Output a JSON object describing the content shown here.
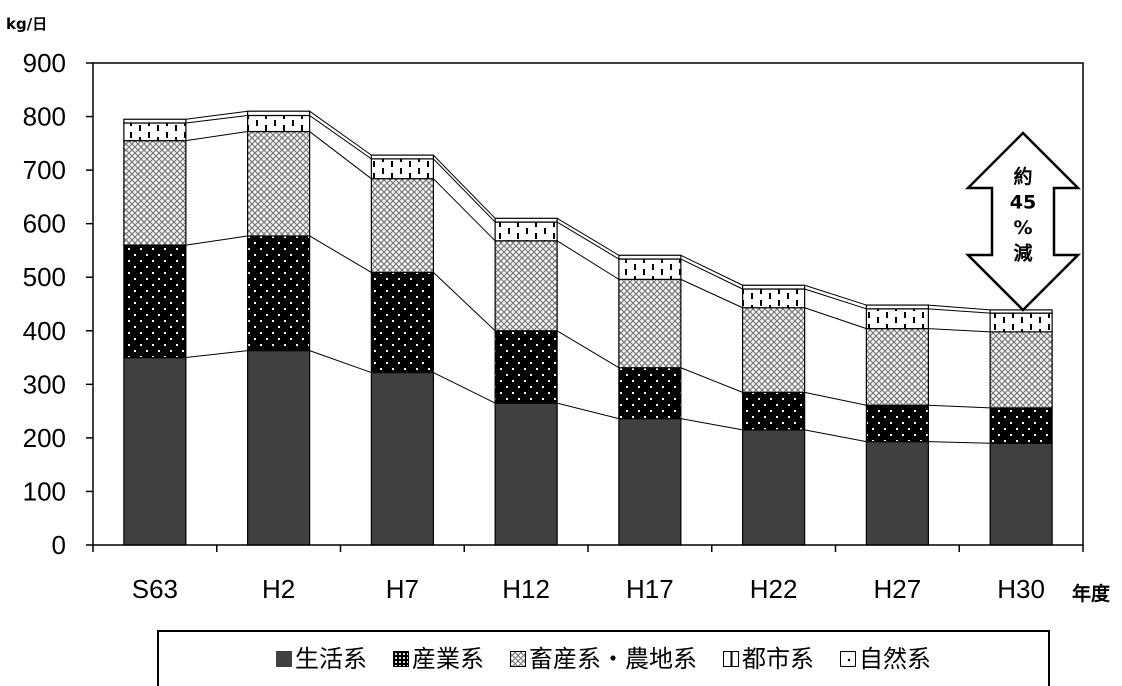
{
  "chart_data": {
    "type": "bar",
    "stacked": true,
    "unit": "kg/日",
    "xlabel": "年度",
    "categories": [
      "S63",
      "H2",
      "H7",
      "H12",
      "H17",
      "H22",
      "H27",
      "H30"
    ],
    "ylim": [
      0,
      900
    ],
    "yticks": [
      0,
      100,
      200,
      300,
      400,
      500,
      600,
      700,
      800,
      900
    ],
    "series": [
      {
        "name": "生活系",
        "values": [
          350,
          363,
          322,
          265,
          236,
          215,
          193,
          190
        ],
        "fill": "dark",
        "color": "#404040"
      },
      {
        "name": "産業系",
        "values": [
          210,
          214,
          187,
          135,
          95,
          70,
          68,
          66
        ],
        "fill": "black-dots",
        "color": "#000000"
      },
      {
        "name": "畜産系・農地系",
        "values": [
          195,
          195,
          175,
          168,
          165,
          158,
          143,
          142
        ],
        "fill": "crosshatch",
        "color": "#ffffff"
      },
      {
        "name": "都市系",
        "values": [
          33,
          30,
          37,
          35,
          38,
          35,
          37,
          35
        ],
        "fill": "ticks",
        "color": "#ffffff"
      },
      {
        "name": "自然系",
        "values": [
          7,
          8,
          7,
          7,
          7,
          7,
          7,
          6
        ],
        "fill": "white",
        "color": "#ffffff"
      }
    ],
    "annotation": {
      "text": [
        "約",
        "45",
        "%",
        "減"
      ]
    },
    "legend_position": "bottom",
    "grid": false
  }
}
